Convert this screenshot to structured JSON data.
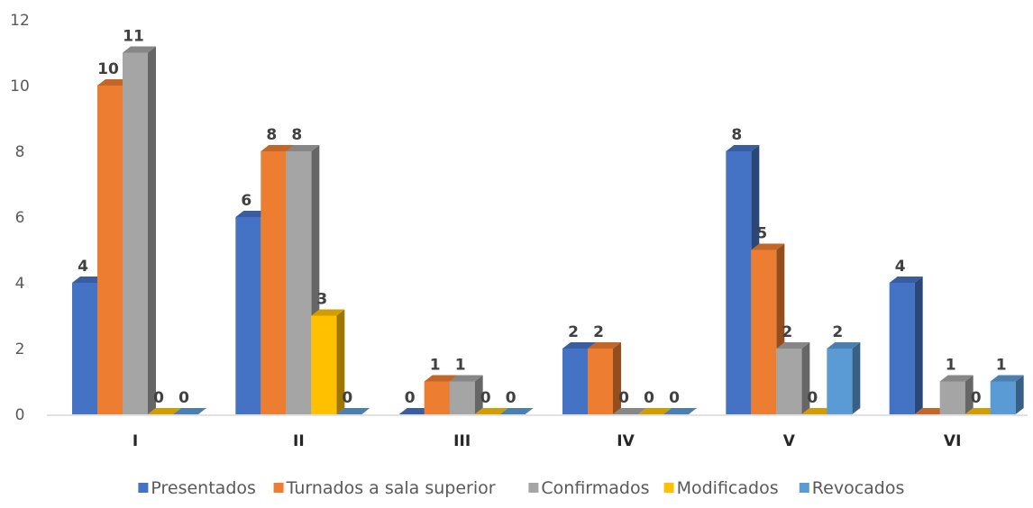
{
  "chart_data": {
    "type": "bar",
    "title": "",
    "xlabel": "",
    "ylabel": "",
    "ylim": [
      0,
      12
    ],
    "yticks": [
      0,
      2,
      4,
      6,
      8,
      10,
      12
    ],
    "grid": false,
    "legend_position": "bottom",
    "style": "3d-column",
    "categories": [
      "I",
      "II",
      "III",
      "IV",
      "V",
      "VI"
    ],
    "series": [
      {
        "name": "Presentados",
        "values": [
          4,
          6,
          0,
          2,
          8,
          4
        ],
        "color": "#4472C4"
      },
      {
        "name": "Turnados a sala superior",
        "values": [
          10,
          8,
          1,
          2,
          5,
          0
        ],
        "color": "#ED7D31"
      },
      {
        "name": "Confirmados",
        "values": [
          11,
          8,
          1,
          0,
          2,
          1
        ],
        "color": "#A5A5A5"
      },
      {
        "name": "Modificados",
        "values": [
          0,
          3,
          0,
          0,
          0,
          0
        ],
        "color": "#FFC000"
      },
      {
        "name": "Revocados",
        "values": [
          0,
          0,
          0,
          0,
          2,
          1
        ],
        "color": "#5B9BD5"
      }
    ],
    "data_labels": [
      [
        "4",
        "6",
        "0",
        "2",
        "8",
        "4"
      ],
      [
        "10",
        "8",
        "1",
        "2",
        "5",
        ""
      ],
      [
        "11",
        "8",
        "1",
        "0",
        "2",
        "1"
      ],
      [
        "0",
        "3",
        "0",
        "0",
        "0",
        "0"
      ],
      [
        "0",
        "0",
        "0",
        "0",
        "2",
        "1"
      ]
    ]
  }
}
